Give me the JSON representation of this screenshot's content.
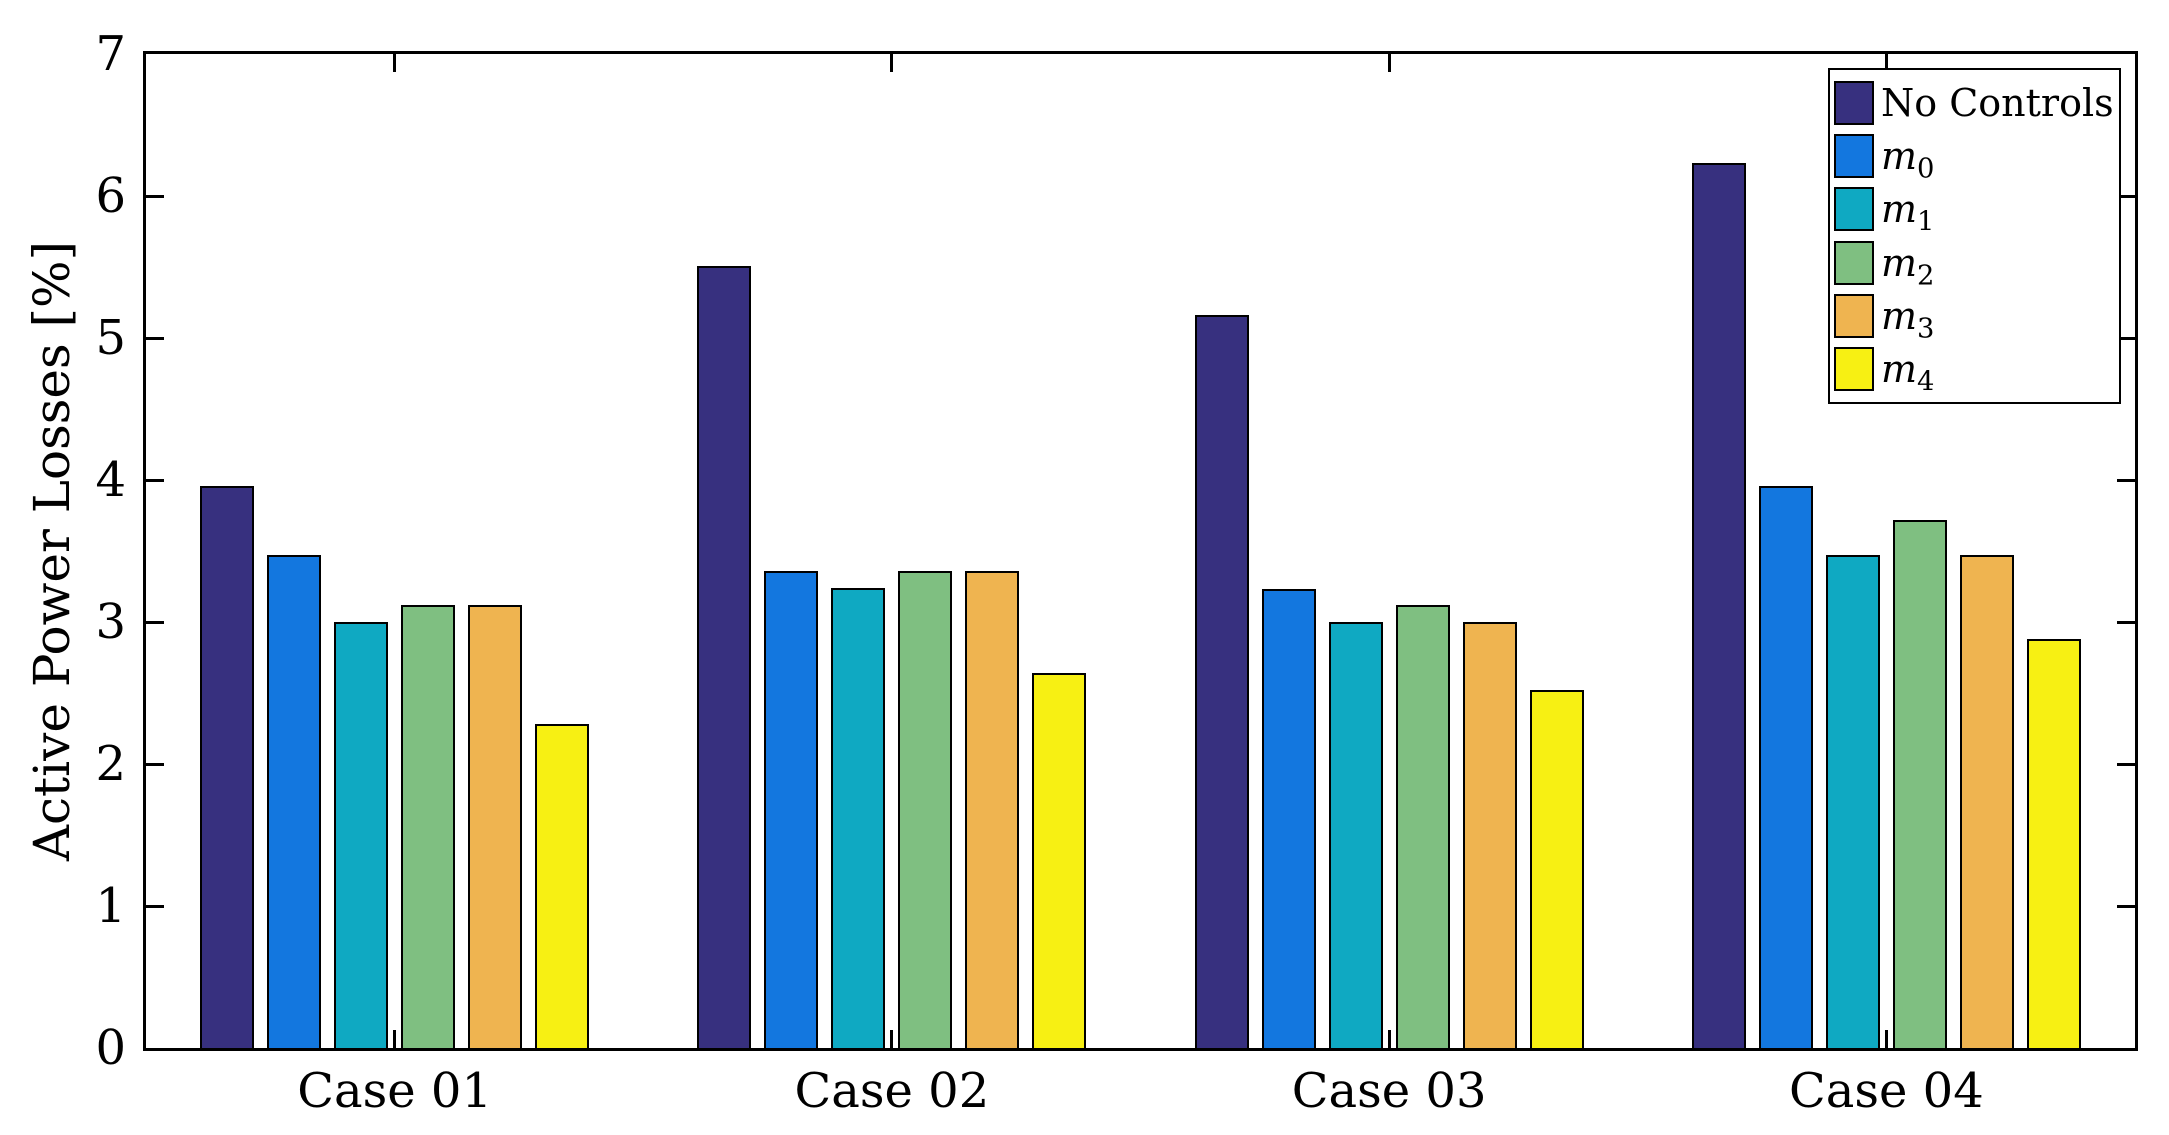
{
  "chart_data": {
    "type": "bar",
    "title": "",
    "xlabel": "",
    "ylabel": "Active Power Losses [%]",
    "categories": [
      "Case 01",
      "Case 02",
      "Case 03",
      "Case 04"
    ],
    "series": [
      {
        "key": "no-controls",
        "label": "No Controls",
        "label_sub": "",
        "italic": false,
        "color": "#37307F",
        "values": [
          3.96,
          5.51,
          5.16,
          6.23
        ]
      },
      {
        "key": "m0",
        "label": "m",
        "label_sub": "0",
        "italic": true,
        "color": "#1377DF",
        "values": [
          3.47,
          3.36,
          3.23,
          3.96
        ]
      },
      {
        "key": "m1",
        "label": "m",
        "label_sub": "1",
        "italic": true,
        "color": "#0FA9C2",
        "values": [
          3.0,
          3.24,
          3.0,
          3.47
        ]
      },
      {
        "key": "m2",
        "label": "m",
        "label_sub": "2",
        "italic": true,
        "color": "#7FBF81",
        "values": [
          3.12,
          3.36,
          3.12,
          3.72
        ]
      },
      {
        "key": "m3",
        "label": "m",
        "label_sub": "3",
        "italic": true,
        "color": "#EFB450",
        "values": [
          3.12,
          3.36,
          3.0,
          3.47
        ]
      },
      {
        "key": "m4",
        "label": "m",
        "label_sub": "4",
        "italic": true,
        "color": "#F7F013",
        "values": [
          2.28,
          2.64,
          2.52,
          2.88
        ]
      }
    ],
    "ylim": [
      0,
      7
    ],
    "yticks": [
      0,
      1,
      2,
      3,
      4,
      5,
      6,
      7
    ],
    "grid": false,
    "legend_position": "top-right-inside",
    "bar_edge_color": "#000000",
    "axis_color": "#000000",
    "background": "#ffffff"
  }
}
